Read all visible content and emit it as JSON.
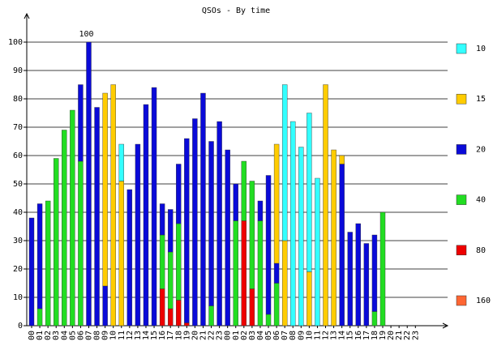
{
  "chart_data": {
    "type": "stacked-bar",
    "title": "QSOs - By time",
    "categories": [
      "00",
      "01",
      "02",
      "03",
      "04",
      "05",
      "06",
      "07",
      "08",
      "09",
      "10",
      "11",
      "12",
      "13",
      "14",
      "15",
      "16",
      "17",
      "18",
      "19",
      "20",
      "21",
      "22",
      "23",
      "00",
      "01",
      "02",
      "03",
      "04",
      "05",
      "06",
      "07",
      "08",
      "09",
      "10",
      "11",
      "12",
      "13",
      "14",
      "15",
      "16",
      "17",
      "18",
      "19",
      "20",
      "21",
      "22",
      "23"
    ],
    "series": [
      {
        "name": "160",
        "color": "#ff6633",
        "values": [
          0,
          0,
          0,
          0,
          0,
          0,
          0,
          0,
          0,
          0,
          0,
          0,
          0,
          0,
          0,
          0,
          0,
          0,
          0,
          0,
          0,
          0,
          0,
          0,
          0,
          0,
          0,
          0,
          0,
          0,
          0,
          0,
          0,
          0,
          0,
          0,
          0,
          0,
          0,
          0,
          0,
          0,
          0,
          0,
          0,
          0,
          0,
          0
        ]
      },
      {
        "name": "80",
        "color": "#ee0000",
        "values": [
          0,
          0,
          0,
          0,
          0,
          0,
          0,
          0,
          0,
          0,
          0,
          0,
          0,
          0,
          0,
          0,
          13,
          6,
          9,
          1,
          0,
          0,
          0,
          0,
          0,
          0,
          37,
          13,
          0,
          0,
          0,
          0,
          0,
          0,
          0,
          0,
          0,
          0,
          0,
          0,
          0,
          0,
          0,
          0,
          0,
          0,
          0,
          0
        ]
      },
      {
        "name": "40",
        "color": "#22dd22",
        "values": [
          0,
          6,
          44,
          59,
          69,
          76,
          58,
          0,
          0,
          0,
          0,
          0,
          0,
          0,
          0,
          0,
          19,
          20,
          27,
          0,
          0,
          0,
          7,
          0,
          0,
          37,
          21,
          38,
          37,
          4,
          15,
          0,
          0,
          0,
          0,
          0,
          0,
          0,
          0,
          0,
          0,
          0,
          5,
          40,
          0,
          0,
          0,
          0
        ]
      },
      {
        "name": "20",
        "color": "#0a0ad8",
        "values": [
          38,
          37,
          0,
          0,
          0,
          0,
          27,
          100,
          77,
          14,
          0,
          0,
          48,
          64,
          78,
          84,
          11,
          15,
          21,
          65,
          73,
          82,
          58,
          72,
          62,
          13,
          0,
          0,
          7,
          49,
          7,
          0,
          0,
          0,
          0,
          0,
          0,
          0,
          57,
          33,
          36,
          29,
          27,
          0,
          0,
          0,
          0,
          0
        ]
      },
      {
        "name": "15",
        "color": "#ffcc00",
        "values": [
          0,
          0,
          0,
          0,
          0,
          0,
          0,
          0,
          0,
          68,
          85,
          51,
          0,
          0,
          0,
          0,
          0,
          0,
          0,
          0,
          0,
          0,
          0,
          0,
          0,
          0,
          0,
          0,
          0,
          0,
          42,
          30,
          0,
          0,
          19,
          0,
          85,
          62,
          3,
          0,
          0,
          0,
          0,
          0,
          0,
          0,
          0,
          0
        ]
      },
      {
        "name": "10",
        "color": "#33ffff",
        "values": [
          0,
          0,
          0,
          0,
          0,
          0,
          0,
          0,
          0,
          0,
          0,
          13,
          0,
          0,
          0,
          0,
          0,
          0,
          0,
          0,
          0,
          0,
          0,
          0,
          0,
          0,
          0,
          0,
          0,
          0,
          0,
          55,
          72,
          63,
          56,
          52,
          0,
          0,
          0,
          0,
          0,
          0,
          0,
          0,
          0,
          0,
          0,
          0
        ]
      }
    ],
    "ylim": [
      0,
      110
    ],
    "yticks": [
      0,
      10,
      20,
      30,
      40,
      50,
      60,
      70,
      80,
      90,
      100
    ],
    "grid": true
  }
}
